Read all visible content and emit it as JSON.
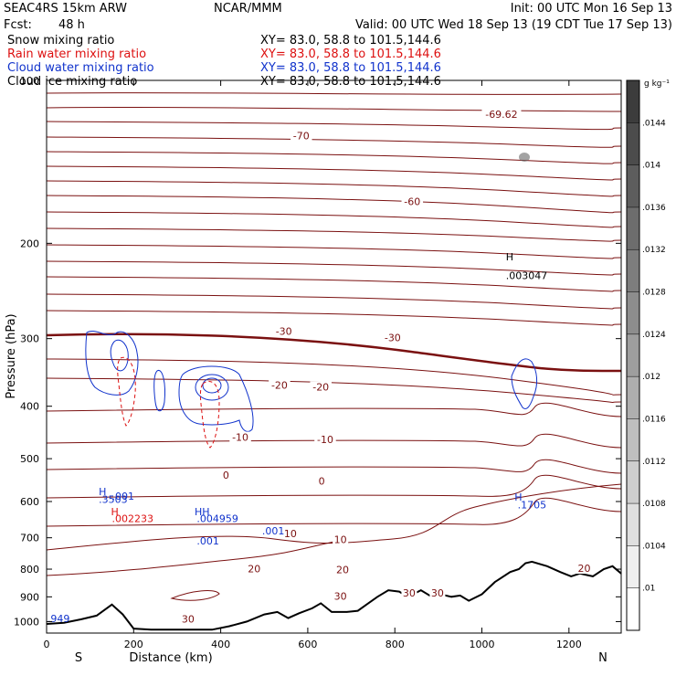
{
  "header": {
    "model": "SEAC4RS 15km ARW",
    "org": "NCAR/MMM",
    "init": "Init: 00 UTC Mon 16 Sep 13",
    "fcst_label": "Fcst:",
    "fcst_value": "48 h",
    "valid": "Valid: 00 UTC Wed 18 Sep 13 (19 CDT Tue 17 Sep 13)",
    "xy": "XY=  83.0, 58.8 to 101.5,144.6"
  },
  "fields": [
    {
      "name": "Snow mixing ratio",
      "color": "#000000"
    },
    {
      "name": "Rain water mixing ratio",
      "color": "#dd1111"
    },
    {
      "name": "Cloud water mixing ratio",
      "color": "#1133cc"
    },
    {
      "name": "Cloud ice mixing ratio",
      "color": "#000000"
    }
  ],
  "colors": {
    "temperature": "#7a1010",
    "rain": "#dd1111",
    "cloud_water": "#1133cc",
    "terrain": "#000000"
  },
  "chart_data": {
    "type": "cross-section",
    "xlabel": "Distance (km)",
    "ylabel": "Pressure (hPa)",
    "xlim": [
      0,
      1320
    ],
    "ylim": [
      1050,
      100
    ],
    "y_scale": "log",
    "xticks": [
      0,
      200,
      400,
      600,
      800,
      1000,
      1200
    ],
    "yticks": [
      1000,
      900,
      800,
      700,
      600,
      500,
      400,
      300,
      200,
      100
    ],
    "x_end_labels": {
      "left": "S",
      "right": "N"
    },
    "temperature_contours": {
      "interval": 5,
      "labels": [
        {
          "text": "-70",
          "x": 585,
          "p": 127
        },
        {
          "text": "-69.62",
          "x": 1045,
          "p": 116
        },
        {
          "text": "-60",
          "x": 840,
          "p": 168
        },
        {
          "text": "-30",
          "x": 545,
          "p": 292
        },
        {
          "text": "-30",
          "x": 795,
          "p": 300
        },
        {
          "text": "-20",
          "x": 535,
          "p": 367
        },
        {
          "text": "-20",
          "x": 630,
          "p": 370
        },
        {
          "text": "-10",
          "x": 445,
          "p": 458
        },
        {
          "text": "-10",
          "x": 640,
          "p": 462
        },
        {
          "text": "0",
          "x": 412,
          "p": 538
        },
        {
          "text": "0",
          "x": 632,
          "p": 552
        },
        {
          "text": "10",
          "x": 560,
          "p": 690
        },
        {
          "text": "10",
          "x": 675,
          "p": 708
        },
        {
          "text": "20",
          "x": 477,
          "p": 802
        },
        {
          "text": "20",
          "x": 680,
          "p": 805
        },
        {
          "text": "20",
          "x": 1235,
          "p": 800
        },
        {
          "text": "30",
          "x": 675,
          "p": 900
        },
        {
          "text": "30",
          "x": 833,
          "p": 888
        },
        {
          "text": "30",
          "x": 898,
          "p": 888
        },
        {
          "text": "30",
          "x": 325,
          "p": 993
        }
      ]
    },
    "terrain": [
      {
        "x": 0,
        "p": 1010
      },
      {
        "x": 40,
        "p": 1005
      },
      {
        "x": 80,
        "p": 990
      },
      {
        "x": 115,
        "p": 975
      },
      {
        "x": 150,
        "p": 930
      },
      {
        "x": 175,
        "p": 970
      },
      {
        "x": 200,
        "p": 1030
      },
      {
        "x": 240,
        "p": 1035
      },
      {
        "x": 300,
        "p": 1035
      },
      {
        "x": 380,
        "p": 1035
      },
      {
        "x": 420,
        "p": 1020
      },
      {
        "x": 460,
        "p": 1000
      },
      {
        "x": 500,
        "p": 970
      },
      {
        "x": 530,
        "p": 960
      },
      {
        "x": 555,
        "p": 985
      },
      {
        "x": 580,
        "p": 965
      },
      {
        "x": 610,
        "p": 945
      },
      {
        "x": 630,
        "p": 925
      },
      {
        "x": 655,
        "p": 960
      },
      {
        "x": 690,
        "p": 960
      },
      {
        "x": 715,
        "p": 955
      },
      {
        "x": 735,
        "p": 930
      },
      {
        "x": 760,
        "p": 900
      },
      {
        "x": 785,
        "p": 875
      },
      {
        "x": 810,
        "p": 880
      },
      {
        "x": 830,
        "p": 900
      },
      {
        "x": 860,
        "p": 875
      },
      {
        "x": 885,
        "p": 900
      },
      {
        "x": 905,
        "p": 890
      },
      {
        "x": 930,
        "p": 900
      },
      {
        "x": 950,
        "p": 895
      },
      {
        "x": 970,
        "p": 915
      },
      {
        "x": 1000,
        "p": 890
      },
      {
        "x": 1030,
        "p": 845
      },
      {
        "x": 1065,
        "p": 810
      },
      {
        "x": 1085,
        "p": 800
      },
      {
        "x": 1100,
        "p": 780
      },
      {
        "x": 1115,
        "p": 775
      },
      {
        "x": 1150,
        "p": 790
      },
      {
        "x": 1180,
        "p": 810
      },
      {
        "x": 1205,
        "p": 825
      },
      {
        "x": 1225,
        "p": 815
      },
      {
        "x": 1255,
        "p": 825
      },
      {
        "x": 1280,
        "p": 800
      },
      {
        "x": 1300,
        "p": 790
      },
      {
        "x": 1320,
        "p": 815
      }
    ],
    "annotations": [
      {
        "text": "H",
        "x": 1055,
        "p": 215,
        "color": "#000000"
      },
      {
        "text": ".003047",
        "x": 1055,
        "p": 233,
        "color": "#000000"
      },
      {
        "text": "H",
        "x": 120,
        "p": 584,
        "color": "#1133cc"
      },
      {
        "text": ".3503",
        "x": 120,
        "p": 603,
        "color": "#1133cc"
      },
      {
        "text": "H",
        "x": 148,
        "p": 636,
        "color": "#dd1111"
      },
      {
        "text": ".002233",
        "x": 150,
        "p": 655,
        "color": "#dd1111"
      },
      {
        "text": ".001",
        "x": 150,
        "p": 595,
        "color": "#1133cc"
      },
      {
        "text": "HH",
        "x": 340,
        "p": 636,
        "color": "#1133cc"
      },
      {
        "text": ".004959",
        "x": 345,
        "p": 655,
        "color": "#1133cc"
      },
      {
        "text": ".001",
        "x": 345,
        "p": 720,
        "color": "#1133cc"
      },
      {
        "text": ".001",
        "x": 495,
        "p": 690,
        "color": "#1133cc"
      },
      {
        "text": "H",
        "x": 1075,
        "p": 598,
        "color": "#1133cc"
      },
      {
        "text": ".1705",
        "x": 1082,
        "p": 618,
        "color": "#1133cc"
      },
      {
        "text": ".949",
        "x": 2,
        "p": 1003,
        "color": "#1133cc"
      }
    ],
    "colorbar": {
      "unit": "g kg⁻¹",
      "ticks": [
        ".0144",
        ".014",
        ".0136",
        ".0132",
        ".0128",
        ".0124",
        ".012",
        ".0116",
        ".0112",
        ".0108",
        ".0104",
        ".01"
      ]
    }
  }
}
